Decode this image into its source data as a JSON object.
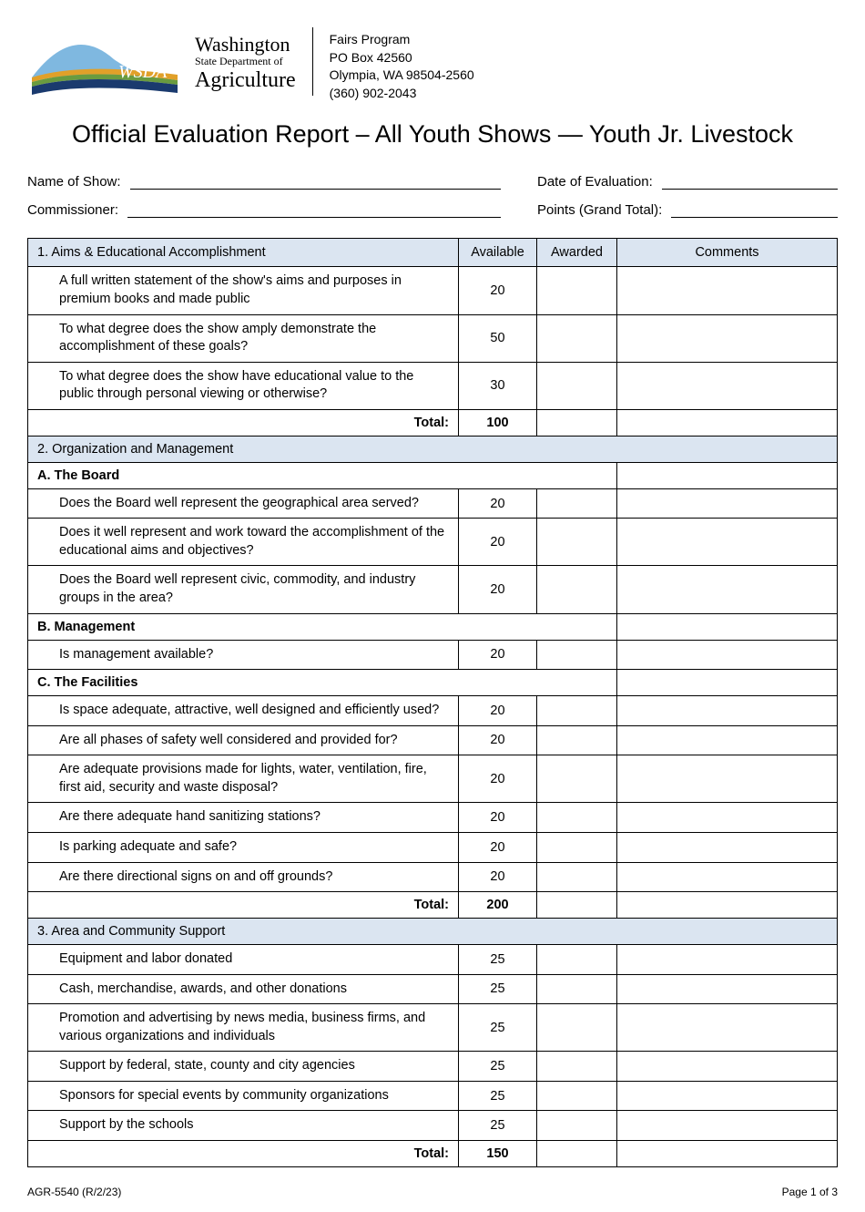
{
  "header": {
    "logo": {
      "acronym": "WSDA",
      "colors": {
        "sky": "#7fb8e0",
        "gold": "#e1a029",
        "green": "#6a9b3f",
        "navy": "#1a3a6e"
      }
    },
    "dept": {
      "line1": "Washington",
      "line2": "State Department of",
      "line3": "Agriculture"
    },
    "contact": {
      "program": "Fairs Program",
      "po": "PO Box 42560",
      "city": "Olympia, WA  98504-2560",
      "phone": "(360) 902-2043"
    }
  },
  "title": "Official Evaluation Report – All Youth Shows — Youth Jr. Livestock",
  "fields": {
    "name_label": "Name of Show:",
    "name_value": "",
    "date_label": "Date of Evaluation:",
    "date_value": "",
    "commissioner_label": "Commissioner:",
    "commissioner_value": "",
    "points_label": "Points (Grand Total):",
    "points_value": ""
  },
  "columns": {
    "criteria": "",
    "available": "Available",
    "awarded": "Awarded",
    "comments": "Comments"
  },
  "sections": [
    {
      "heading": "1. Aims & Educational Accomplishment",
      "heading_in_header": true,
      "subsections": [
        {
          "name": null,
          "rows": [
            {
              "text": "A full written statement of the show's aims and purposes in premium books and made public",
              "avail": "20"
            },
            {
              "text": "To what degree does the show amply demonstrate the accomplishment of these goals?",
              "avail": "50"
            },
            {
              "text": "To what degree does the show have educational value to the public through personal viewing or otherwise?",
              "avail": "30"
            }
          ]
        }
      ],
      "total": "100"
    },
    {
      "heading": "2. Organization and Management",
      "heading_in_header": false,
      "subsections": [
        {
          "name": "A. The Board",
          "rows": [
            {
              "text": "Does the Board well represent the geographical area served?",
              "avail": "20"
            },
            {
              "text": "Does it well represent and work toward the accomplishment of the educational aims and objectives?",
              "avail": "20"
            },
            {
              "text": "Does the Board well represent civic, commodity, and industry groups in the area?",
              "avail": "20"
            }
          ]
        },
        {
          "name": "B. Management",
          "rows": [
            {
              "text": "Is management available?",
              "avail": "20"
            }
          ]
        },
        {
          "name": "C. The Facilities",
          "rows": [
            {
              "text": "Is space adequate, attractive, well designed and efficiently used?",
              "avail": "20"
            },
            {
              "text": "Are all phases of safety well considered and provided for?",
              "avail": "20"
            },
            {
              "text": "Are adequate provisions made for lights, water, ventilation, fire, first aid, security and waste disposal?",
              "avail": "20"
            },
            {
              "text": "Are there adequate hand sanitizing stations?",
              "avail": "20"
            },
            {
              "text": "Is parking adequate and safe?",
              "avail": "20"
            },
            {
              "text": "Are there directional signs on and off grounds?",
              "avail": "20"
            }
          ]
        }
      ],
      "total": "200"
    },
    {
      "heading": "3. Area and Community Support",
      "heading_in_header": false,
      "subsections": [
        {
          "name": null,
          "rows": [
            {
              "text": "Equipment and labor donated",
              "avail": "25"
            },
            {
              "text": "Cash, merchandise, awards, and other donations",
              "avail": "25"
            },
            {
              "text": "Promotion and advertising by news media, business firms, and various organizations and individuals",
              "avail": "25"
            },
            {
              "text": "Support by federal, state, county and city agencies",
              "avail": "25"
            },
            {
              "text": "Sponsors for special events by community organizations",
              "avail": "25"
            },
            {
              "text": "Support by the schools",
              "avail": "25"
            }
          ]
        }
      ],
      "total": "150"
    }
  ],
  "footer": {
    "form_no": "AGR-5540 (R/2/23)",
    "page": "Page 1 of 3"
  },
  "total_label": "Total:"
}
